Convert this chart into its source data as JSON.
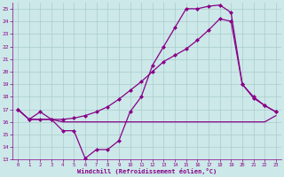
{
  "background_color": "#cce8e8",
  "grid_color": "#aacccc",
  "line_color": "#880088",
  "marker": "D",
  "markersize": 2,
  "linewidth": 0.9,
  "xlim": [
    -0.5,
    23.5
  ],
  "ylim": [
    13,
    25.5
  ],
  "yticks": [
    13,
    14,
    15,
    16,
    17,
    18,
    19,
    20,
    21,
    22,
    23,
    24,
    25
  ],
  "xticks": [
    0,
    1,
    2,
    3,
    4,
    5,
    6,
    7,
    8,
    9,
    10,
    11,
    12,
    13,
    14,
    15,
    16,
    17,
    18,
    19,
    20,
    21,
    22,
    23
  ],
  "xlabel": "Windchill (Refroidissement éolien,°C)",
  "line1_x": [
    0,
    1,
    2,
    3,
    4,
    5,
    6,
    7,
    8,
    9,
    10,
    11,
    12,
    13,
    14,
    15,
    16,
    17,
    18,
    19,
    20,
    21,
    22,
    23
  ],
  "line1_y": [
    17,
    16.2,
    16.8,
    16.2,
    15.3,
    15.3,
    13.1,
    13.8,
    13.8,
    14.5,
    16.8,
    18.0,
    20.5,
    22.0,
    23.5,
    25.0,
    25.0,
    25.2,
    25.3,
    24.7,
    19.0,
    18.0,
    17.3,
    16.8
  ],
  "line2_x": [
    0,
    1,
    2,
    3,
    4,
    5,
    6,
    7,
    8,
    9,
    10,
    11,
    12,
    13,
    14,
    15,
    16,
    17,
    18,
    19,
    20,
    21,
    22,
    23
  ],
  "line2_y": [
    17,
    16.2,
    16.2,
    16.2,
    16.0,
    16.0,
    16.0,
    16.0,
    16.0,
    16.0,
    16.0,
    16.0,
    16.0,
    16.0,
    16.0,
    16.0,
    16.0,
    16.0,
    16.0,
    16.0,
    16.0,
    16.0,
    16.0,
    16.5
  ],
  "line3_x": [
    0,
    1,
    2,
    3,
    4,
    5,
    6,
    7,
    8,
    9,
    10,
    11,
    12,
    13,
    14,
    15,
    16,
    17,
    18,
    19,
    20,
    21,
    22,
    23
  ],
  "line3_y": [
    17,
    16.2,
    16.2,
    16.2,
    16.2,
    16.3,
    16.5,
    16.8,
    17.2,
    17.8,
    18.5,
    19.2,
    20.0,
    20.8,
    21.3,
    21.8,
    22.5,
    23.3,
    24.2,
    24.0,
    19.0,
    17.9,
    17.3,
    16.8
  ]
}
